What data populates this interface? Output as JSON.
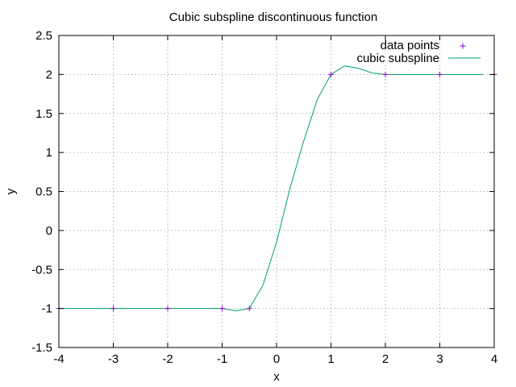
{
  "chart_data": {
    "type": "line",
    "title": "Cubic subspline discontinuous function",
    "xlabel": "x",
    "ylabel": "y",
    "xlim": [
      -4,
      4
    ],
    "ylim": [
      -1.5,
      2.5
    ],
    "x_ticks": [
      "-4",
      "-3",
      "-2",
      "-1",
      "0",
      "1",
      "2",
      "3",
      "4"
    ],
    "y_ticks": [
      "-1.5",
      "-1",
      "-0.5",
      "0",
      "0.5",
      "1",
      "1.5",
      "2",
      "2.5"
    ],
    "x_tick_values": [
      -4,
      -3,
      -2,
      -1,
      0,
      1,
      2,
      3,
      4
    ],
    "y_tick_values": [
      -1.5,
      -1,
      -0.5,
      0,
      0.5,
      1,
      1.5,
      2,
      2.5
    ],
    "grid": true,
    "legend_position": "top-right",
    "series": [
      {
        "name": "data points",
        "kind": "points",
        "color": "#9400d3",
        "x": [
          -4,
          -3,
          -2,
          -1,
          -0.5,
          1,
          2,
          3,
          4
        ],
        "y": [
          -1,
          -1,
          -1,
          -1,
          -1,
          2,
          2,
          2,
          2
        ]
      },
      {
        "name": "cubic subspline",
        "kind": "line",
        "color": "#009e73",
        "x": [
          -4,
          -3,
          -2,
          -1,
          -0.75,
          -0.5,
          -0.25,
          0,
          0.25,
          0.5,
          0.75,
          1,
          1.25,
          1.5,
          1.75,
          2,
          3,
          3.8
        ],
        "y": [
          -1,
          -1,
          -1,
          -1,
          -1.03,
          -1,
          -0.7,
          -0.15,
          0.55,
          1.15,
          1.68,
          2,
          2.11,
          2.08,
          2.02,
          2,
          2,
          2
        ]
      }
    ]
  }
}
